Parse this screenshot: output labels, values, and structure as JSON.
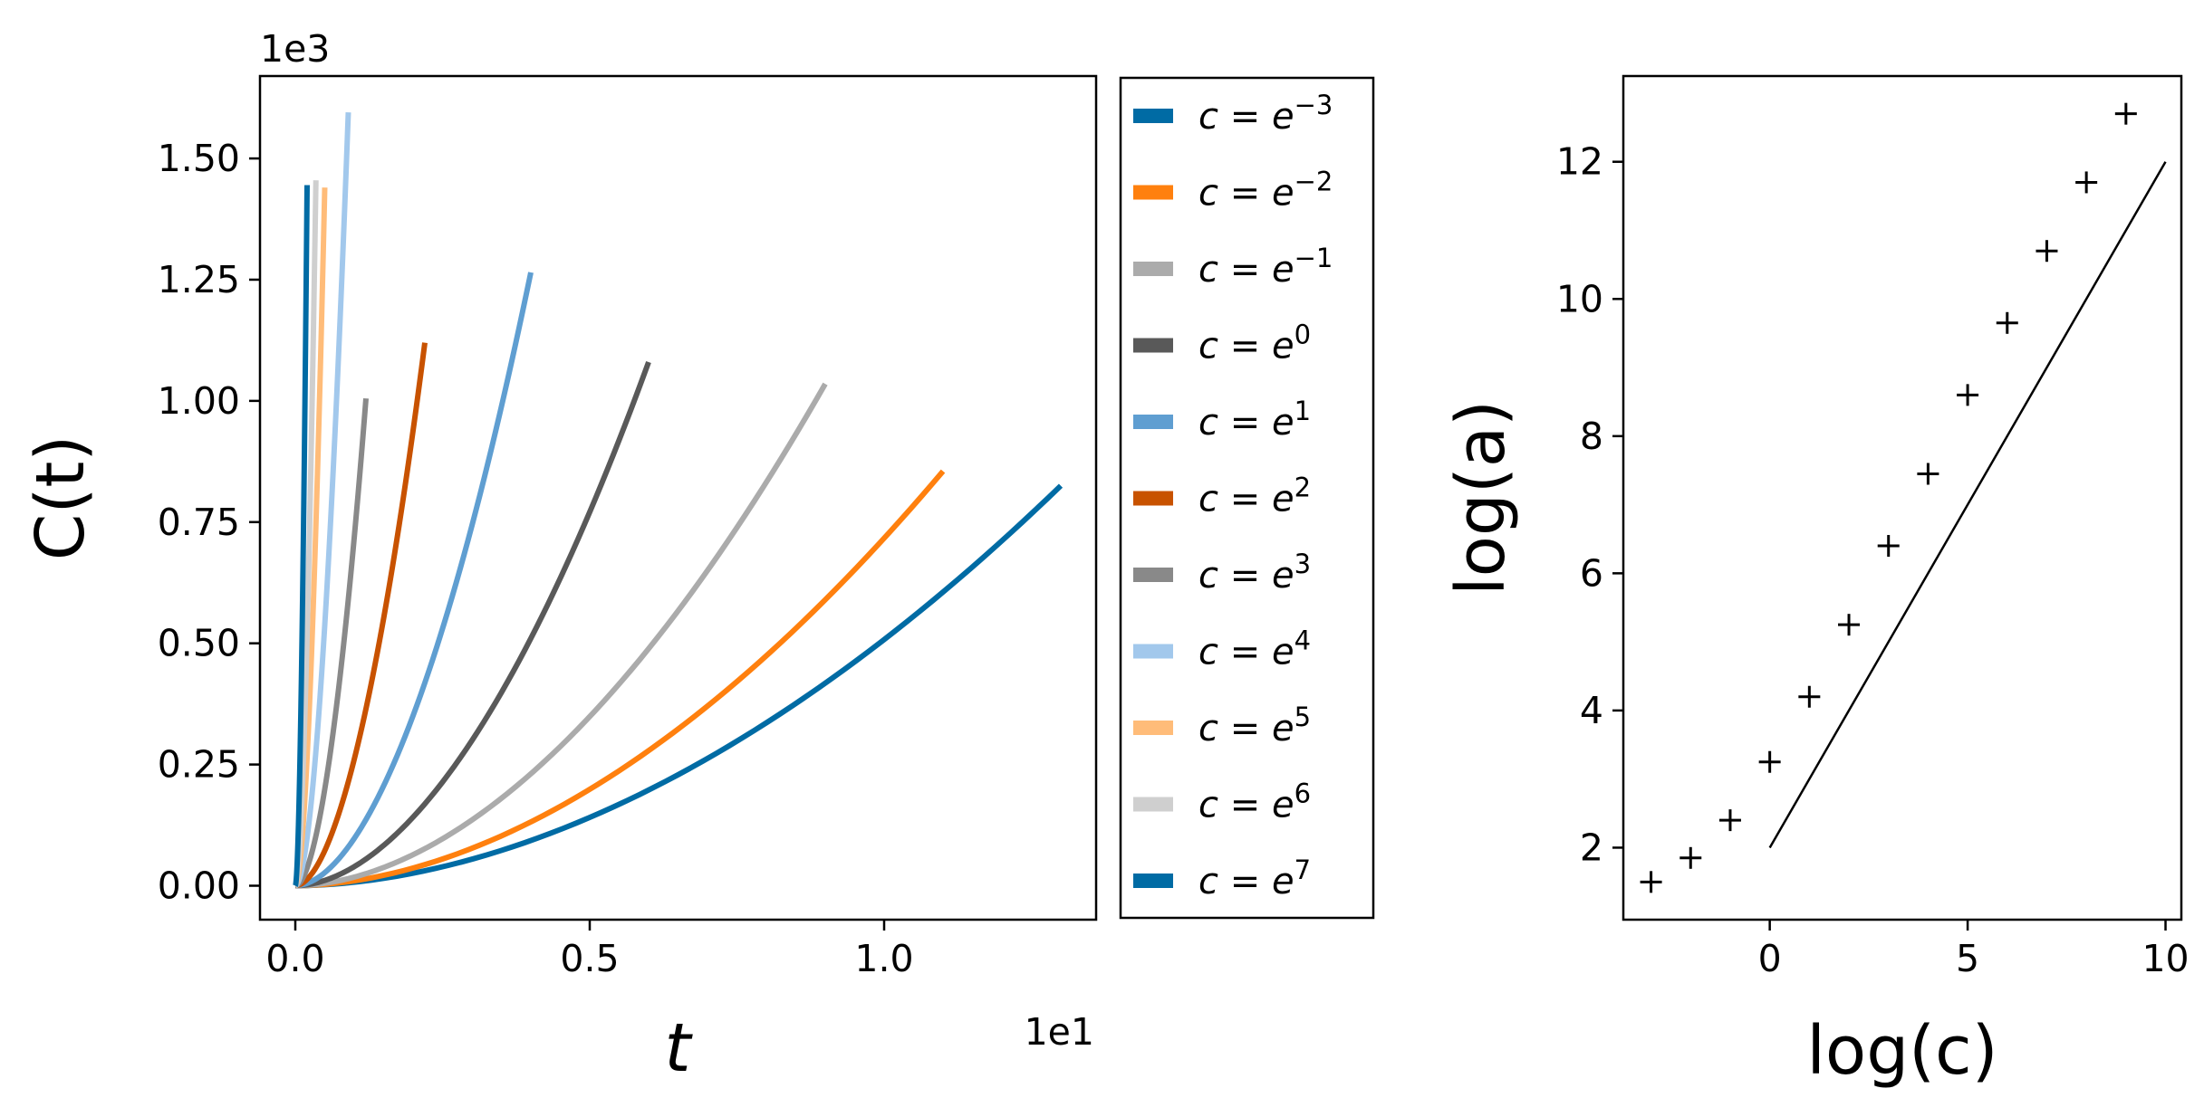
{
  "chart_data": [
    {
      "type": "line",
      "xlabel": "t",
      "ylabel": "C(t)",
      "x_offset_label": "1e1",
      "y_offset_label": "1e3",
      "xlim": [
        -0.06,
        1.36
      ],
      "ylim": [
        -0.07,
        1.67
      ],
      "x_ticks": [
        0.0,
        0.5,
        1.0
      ],
      "x_tick_labels": [
        "0.0",
        "0.5",
        "1.0"
      ],
      "y_ticks": [
        0.0,
        0.25,
        0.5,
        0.75,
        1.0,
        1.25,
        1.5
      ],
      "y_tick_labels": [
        "0.00",
        "0.25",
        "0.50",
        "0.75",
        "1.00",
        "1.25",
        "1.50"
      ],
      "grid": false,
      "legend_position": "outside-right",
      "series": [
        {
          "name": "c = e^{-3}",
          "base": "c = e",
          "exp": "−3",
          "color": "#006BA4",
          "t_end": 1.3,
          "c_end": 0.825
        },
        {
          "name": "c = e^{-2}",
          "base": "c = e",
          "exp": "−2",
          "color": "#FF800E",
          "t_end": 1.1,
          "c_end": 0.855
        },
        {
          "name": "c = e^{-1}",
          "base": "c = e",
          "exp": "−1",
          "color": "#ABABAB",
          "t_end": 0.9,
          "c_end": 1.035
        },
        {
          "name": "c = e^{0}",
          "base": "c = e",
          "exp": "0",
          "color": "#595959",
          "t_end": 0.6,
          "c_end": 1.08
        },
        {
          "name": "c = e^{1}",
          "base": "c = e",
          "exp": "1",
          "color": "#5F9ED1",
          "t_end": 0.4,
          "c_end": 1.265
        },
        {
          "name": "c = e^{2}",
          "base": "c = e",
          "exp": "2",
          "color": "#C85200",
          "t_end": 0.22,
          "c_end": 1.12
        },
        {
          "name": "c = e^{3}",
          "base": "c = e",
          "exp": "3",
          "color": "#898989",
          "t_end": 0.12,
          "c_end": 1.005
        },
        {
          "name": "c = e^{4}",
          "base": "c = e",
          "exp": "4",
          "color": "#A2C8EC",
          "t_end": 0.09,
          "c_end": 1.595
        },
        {
          "name": "c = e^{5}",
          "base": "c = e",
          "exp": "5",
          "color": "#FFBC79",
          "t_end": 0.05,
          "c_end": 1.44
        },
        {
          "name": "c = e^{6}",
          "base": "c = e",
          "exp": "6",
          "color": "#CFCFCF",
          "t_end": 0.035,
          "c_end": 1.455
        },
        {
          "name": "c = e^{7}",
          "base": "c = e",
          "exp": "7",
          "color": "#006BA4",
          "t_end": 0.02,
          "c_end": 1.445
        }
      ]
    },
    {
      "type": "scatter",
      "xlabel": "log(c)",
      "ylabel": "log(a)",
      "xlim": [
        -3.7,
        10.4
      ],
      "ylim": [
        0.95,
        13.25
      ],
      "x_ticks": [
        0,
        5,
        10
      ],
      "x_tick_labels": [
        "0",
        "5",
        "10"
      ],
      "y_ticks": [
        2,
        4,
        6,
        8,
        10,
        12
      ],
      "y_tick_labels": [
        "2",
        "4",
        "6",
        "8",
        "10",
        "12"
      ],
      "grid": false,
      "points": {
        "x": [
          -3,
          -2,
          -1,
          0,
          1,
          2,
          3,
          4,
          5,
          6,
          7,
          8,
          9
        ],
        "y": [
          1.5,
          1.85,
          2.4,
          3.25,
          4.2,
          5.25,
          6.4,
          7.45,
          8.6,
          9.65,
          10.7,
          11.7,
          12.7
        ],
        "marker": "+",
        "color": "#000000"
      },
      "reference_line": {
        "x": [
          0,
          10
        ],
        "y": [
          2,
          12
        ],
        "color": "#000000"
      }
    }
  ]
}
